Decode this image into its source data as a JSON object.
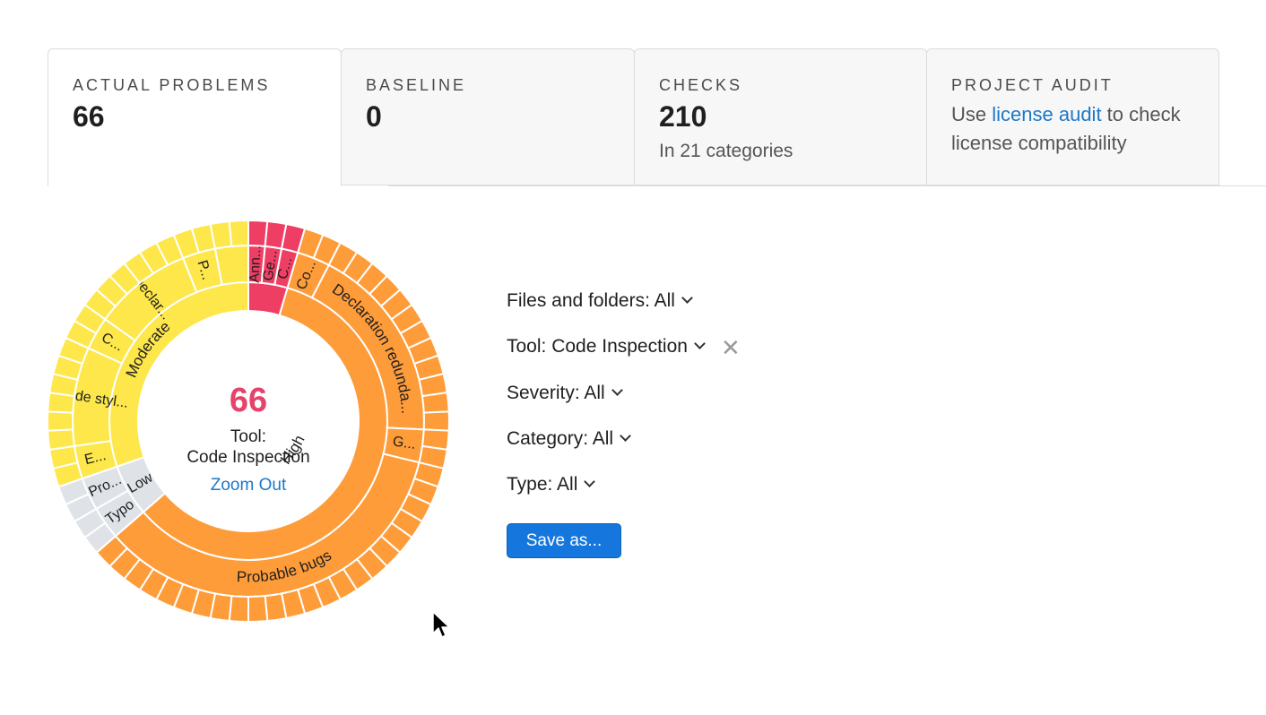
{
  "tabs": [
    {
      "title": "ACTUAL PROBLEMS",
      "value": "66"
    },
    {
      "title": "BASELINE",
      "value": "0"
    },
    {
      "title": "CHECKS",
      "value": "210",
      "sub": "In 21 categories"
    },
    {
      "title": "PROJECT AUDIT",
      "text_before": "Use ",
      "link": "license audit",
      "text_after": " to check license compatibility"
    }
  ],
  "center": {
    "count": "66",
    "line1": "Tool:",
    "line2": "Code Inspection",
    "zoom": "Zoom Out"
  },
  "filters": {
    "files": "Files and folders: All",
    "tool": "Tool: Code Inspection",
    "severity": "Severity: All",
    "category": "Category: All",
    "type": "Type: All",
    "save": "Save as..."
  },
  "colors": {
    "critical": "#ef3e64",
    "high": "#fe9c3a",
    "moderate": "#fde74b",
    "low": "#dfe3e8",
    "link": "#1e78c8",
    "button": "#1577dd"
  },
  "chart_data": {
    "type": "sunburst",
    "total": 66,
    "rings": [
      {
        "ring": "severity",
        "items": [
          {
            "label": "",
            "value": 3,
            "color": "#ef3e64"
          },
          {
            "label": "High",
            "value": 39,
            "color": "#fe9c3a"
          },
          {
            "label": "Low",
            "value": 4,
            "color": "#dfe3e8"
          },
          {
            "label": "Moderate",
            "value": 20,
            "color": "#fde74b"
          }
        ]
      },
      {
        "ring": "category",
        "items": [
          {
            "label": "Ann...",
            "value": 1,
            "color": "#ef3e64"
          },
          {
            "label": "Ge...",
            "value": 1,
            "color": "#ef3e64"
          },
          {
            "label": "C...",
            "value": 1,
            "color": "#ef3e64"
          },
          {
            "label": "Co...",
            "value": 2,
            "color": "#fe9c3a"
          },
          {
            "label": "Declaration redunda...",
            "value": 12,
            "color": "#fe9c3a"
          },
          {
            "label": "G...",
            "value": 2,
            "color": "#fe9c3a"
          },
          {
            "label": "Probable bugs",
            "value": 23,
            "color": "#fe9c3a"
          },
          {
            "label": "Typo",
            "value": 2,
            "color": "#dfe3e8"
          },
          {
            "label": "Pro...",
            "value": 2,
            "color": "#dfe3e8"
          },
          {
            "label": "E...",
            "value": 2,
            "color": "#fde74b"
          },
          {
            "label": "Code styl...",
            "value": 6,
            "color": "#fde74b"
          },
          {
            "label": "C...",
            "value": 2,
            "color": "#fde74b"
          },
          {
            "label": "Declar...",
            "value": 6,
            "color": "#fde74b"
          },
          {
            "label": "P...",
            "value": 2,
            "color": "#fde74b"
          },
          {
            "label": "",
            "value": 2,
            "color": "#fde74b"
          }
        ]
      }
    ]
  }
}
